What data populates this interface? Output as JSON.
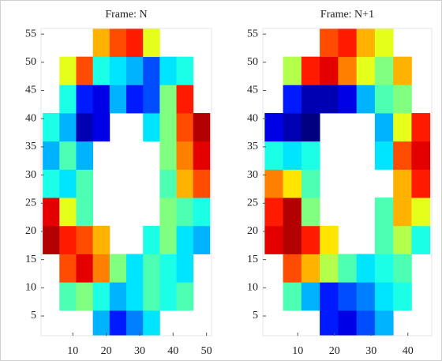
{
  "chart_data": [
    {
      "type": "heatmap",
      "title": "Frame: N",
      "colormap": "jet",
      "clim": [
        0,
        1
      ],
      "xlim": [
        0.5,
        51.5
      ],
      "ylim": [
        1.5,
        56
      ],
      "xticks": [
        10,
        20,
        30,
        40,
        50
      ],
      "yticks": [
        5,
        10,
        15,
        20,
        25,
        30,
        35,
        40,
        45,
        50,
        55
      ],
      "xbins": [
        1,
        6,
        11,
        16,
        21,
        26,
        31,
        36,
        41,
        46,
        51
      ],
      "ybins": [
        1,
        6,
        11,
        16,
        21,
        26,
        31,
        36,
        41,
        46,
        51,
        56
      ],
      "values": [
        [
          null,
          null,
          null,
          0.3,
          0.15,
          0.25,
          0.35,
          null,
          null,
          null
        ],
        [
          null,
          0.45,
          0.5,
          0.4,
          0.3,
          0.35,
          0.45,
          0.4,
          0.45,
          null
        ],
        [
          null,
          0.8,
          0.9,
          0.75,
          0.5,
          0.35,
          0.45,
          0.4,
          0.35,
          null
        ],
        [
          0.95,
          0.85,
          0.8,
          0.7,
          null,
          null,
          0.4,
          0.5,
          0.35,
          0.3
        ],
        [
          0.9,
          0.6,
          0.45,
          null,
          null,
          null,
          null,
          0.5,
          0.45,
          0.4
        ],
        [
          0.4,
          0.35,
          0.45,
          null,
          null,
          null,
          null,
          0.45,
          0.7,
          0.8
        ],
        [
          0.3,
          0.45,
          0.3,
          null,
          null,
          null,
          null,
          0.5,
          0.75,
          0.9
        ],
        [
          0.4,
          0.3,
          0.05,
          0.1,
          null,
          null,
          0.35,
          0.5,
          0.8,
          0.95
        ],
        [
          null,
          0.4,
          0.15,
          0.1,
          0.3,
          0.15,
          0.2,
          0.5,
          0.85,
          null
        ],
        [
          null,
          0.6,
          0.8,
          0.4,
          0.35,
          0.3,
          0.2,
          0.35,
          0.4,
          null
        ],
        [
          null,
          null,
          null,
          0.7,
          0.8,
          0.85,
          0.6,
          null,
          null,
          null
        ]
      ]
    },
    {
      "type": "heatmap",
      "title": "Frame: N+1",
      "colormap": "jet",
      "clim": [
        0,
        1
      ],
      "xlim": [
        0.5,
        46.5
      ],
      "ylim": [
        1.5,
        56
      ],
      "xticks": [
        10,
        20,
        30,
        40
      ],
      "yticks": [
        5,
        10,
        15,
        20,
        25,
        30,
        35,
        40,
        45,
        50,
        55
      ],
      "xbins": [
        1,
        6,
        11,
        16,
        21,
        26,
        31,
        36,
        41,
        46
      ],
      "ybins": [
        1,
        6,
        11,
        16,
        21,
        26,
        31,
        36,
        41,
        46,
        51,
        56
      ],
      "values": [
        [
          null,
          null,
          null,
          0.15,
          0.1,
          0.2,
          0.3,
          null,
          null
        ],
        [
          null,
          0.45,
          0.3,
          0.15,
          0.2,
          0.25,
          0.35,
          0.4,
          null
        ],
        [
          null,
          0.8,
          0.7,
          0.55,
          0.45,
          0.35,
          0.4,
          0.45,
          null
        ],
        [
          0.9,
          0.95,
          0.85,
          0.65,
          null,
          null,
          0.45,
          0.55,
          0.4
        ],
        [
          0.85,
          0.95,
          0.5,
          null,
          null,
          null,
          0.45,
          0.7,
          0.6
        ],
        [
          0.75,
          0.65,
          0.45,
          null,
          null,
          null,
          null,
          0.7,
          0.85
        ],
        [
          0.4,
          0.35,
          0.4,
          null,
          null,
          null,
          0.35,
          0.8,
          0.9
        ],
        [
          0.1,
          0.05,
          0.0,
          null,
          null,
          null,
          0.3,
          0.6,
          0.85
        ],
        [
          null,
          0.15,
          0.05,
          0.05,
          0.1,
          0.3,
          0.45,
          0.5,
          null
        ],
        [
          null,
          0.55,
          0.85,
          0.9,
          0.75,
          0.6,
          0.5,
          0.7,
          null
        ],
        [
          null,
          null,
          null,
          0.8,
          0.85,
          0.7,
          0.6,
          null,
          null
        ]
      ]
    }
  ]
}
